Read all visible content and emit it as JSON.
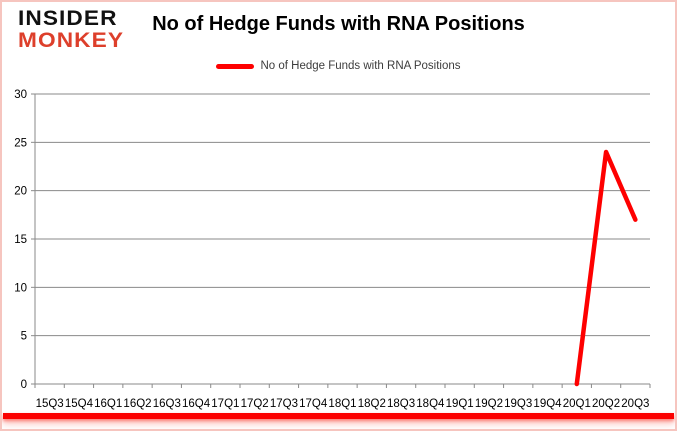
{
  "logo": {
    "line1": "INSIDER",
    "line2": "MONKEY"
  },
  "header": {
    "title": "No of Hedge Funds with RNA Positions"
  },
  "legend": {
    "label": "No of Hedge Funds with RNA Positions"
  },
  "colors": {
    "series": "#fe0000",
    "gridline": "#8a8a8a",
    "axis_line": "#8a8a8a",
    "axis_text": "#000000",
    "logo_black": "#111111",
    "logo_red": "#dd3f2b",
    "border_pink": "#f6c5bf",
    "bottom_bar": "#fb0100"
  },
  "chart_data": {
    "type": "line",
    "title": "No of Hedge Funds with RNA Positions",
    "categories": [
      "15Q3",
      "15Q4",
      "16Q1",
      "16Q2",
      "16Q3",
      "16Q4",
      "17Q1",
      "17Q2",
      "17Q3",
      "17Q4",
      "18Q1",
      "18Q2",
      "18Q3",
      "18Q4",
      "19Q1",
      "19Q2",
      "19Q3",
      "19Q4",
      "20Q1",
      "20Q2",
      "20Q3"
    ],
    "series": [
      {
        "name": "No of Hedge Funds with RNA Positions",
        "color": "#fe0000",
        "values": [
          null,
          null,
          null,
          null,
          null,
          null,
          null,
          null,
          null,
          null,
          null,
          null,
          null,
          null,
          null,
          null,
          null,
          null,
          0,
          24,
          17
        ]
      }
    ],
    "ylim": [
      0,
      30
    ],
    "ytick_step": 5,
    "yticks": [
      0,
      5,
      10,
      15,
      20,
      25,
      30
    ],
    "grid": true,
    "legend_position": "top-center"
  }
}
